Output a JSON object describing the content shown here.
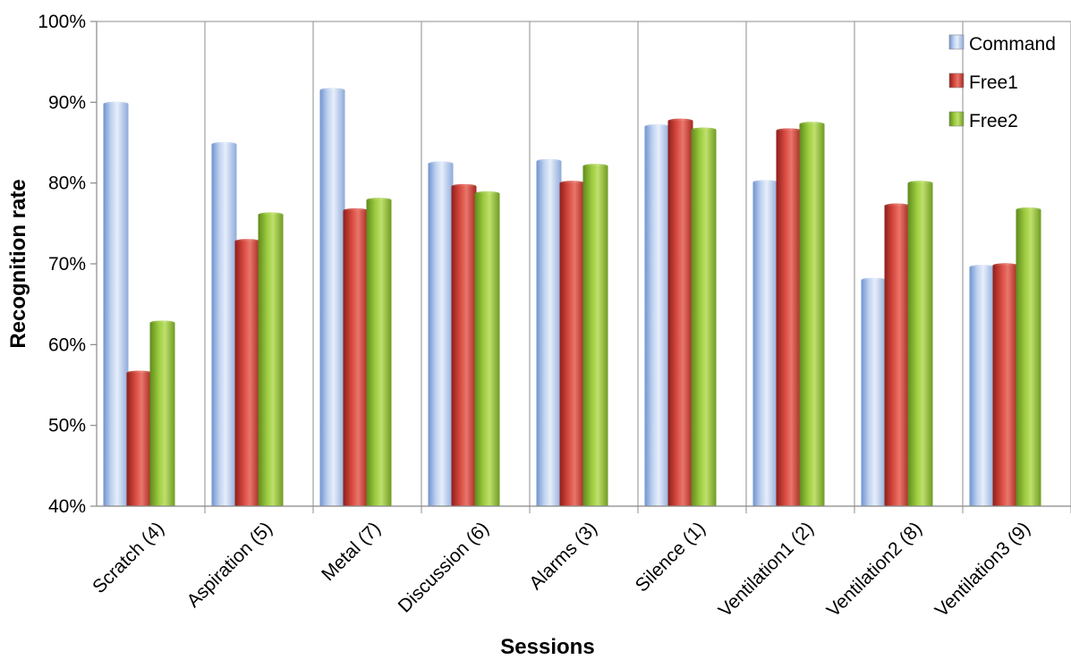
{
  "chart_data": {
    "type": "bar",
    "title": "",
    "xlabel": "Sessions",
    "ylabel": "Recognition rate",
    "ylim": [
      0.4,
      1.0
    ],
    "yticks": [
      "40%",
      "50%",
      "60%",
      "70%",
      "80%",
      "90%",
      "100%"
    ],
    "grid": "vertical",
    "legend_position": "top-right",
    "categories": [
      "Scratch (4)",
      "Aspiration (5)",
      "Metal (7)",
      "Discussion (6)",
      "Alarms (3)",
      "Silence (1)",
      "Ventilation1 (2)",
      "Ventilation2 (8)",
      "Ventilation3 (9)"
    ],
    "series": [
      {
        "name": "Command",
        "color": "#9db8e2",
        "values": [
          0.898,
          0.848,
          0.915,
          0.824,
          0.827,
          0.87,
          0.801,
          0.68,
          0.696
        ]
      },
      {
        "name": "Free1",
        "color": "#c0302a",
        "values": [
          0.565,
          0.728,
          0.766,
          0.796,
          0.8,
          0.877,
          0.865,
          0.772,
          0.698
        ]
      },
      {
        "name": "Free2",
        "color": "#8cbb2f",
        "values": [
          0.627,
          0.761,
          0.779,
          0.787,
          0.821,
          0.866,
          0.873,
          0.8,
          0.767
        ]
      }
    ]
  }
}
